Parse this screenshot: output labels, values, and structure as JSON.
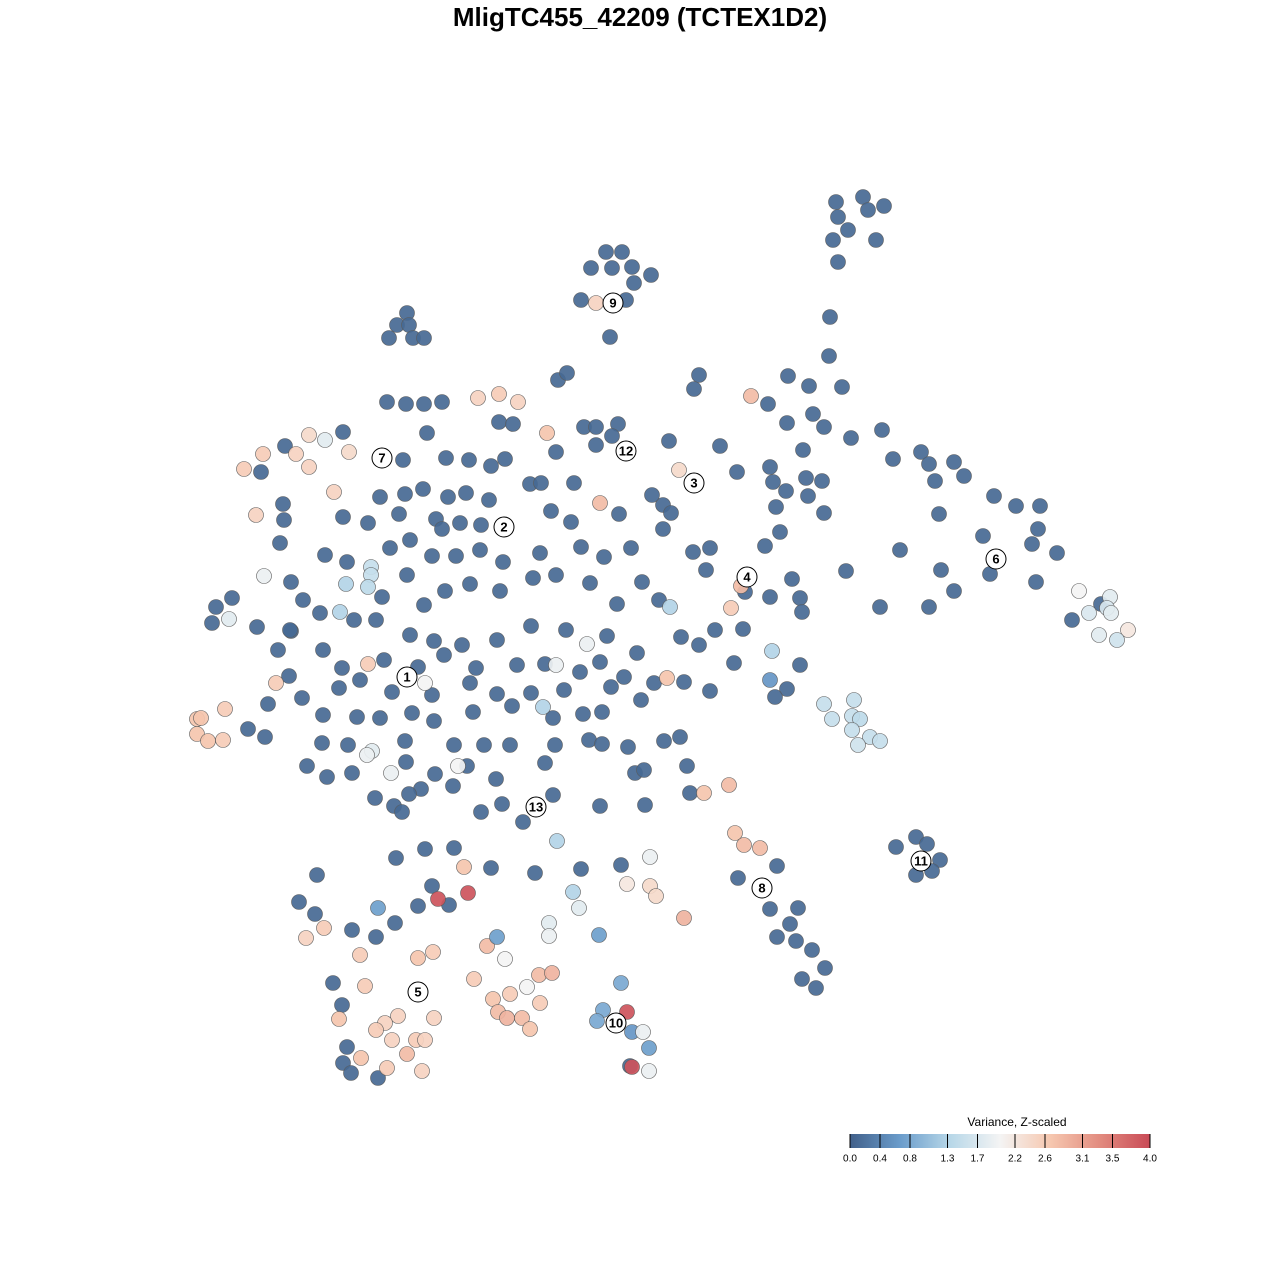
{
  "chart_data": {
    "type": "scatter",
    "title": "MligTC455_42209 (TCTEX1D2)",
    "xlim": [
      180,
      1140
    ],
    "ylim": [
      1090,
      180
    ],
    "colorbar_title": "Variance, Z-scaled",
    "zlim": [
      0,
      4
    ],
    "colors": [
      "#41608a",
      "#6a9ccb",
      "#b7d7e8",
      "#f4f4f4",
      "#f6c8b0",
      "#e28b7f",
      "#c94a56"
    ],
    "zticks": [
      {
        "value": 0,
        "label": "0.0"
      },
      {
        "value": 0.4,
        "label": "0.4"
      },
      {
        "value": 0.8,
        "label": "0.8"
      },
      {
        "value": 1.3,
        "label": "1.3"
      },
      {
        "value": 1.7,
        "label": "1.7"
      },
      {
        "value": 2.2,
        "label": "2.2"
      },
      {
        "value": 2.6,
        "label": "2.6"
      },
      {
        "value": 3.1,
        "label": "3.1"
      },
      {
        "value": 3.5,
        "label": "3.5"
      },
      {
        "value": 4,
        "label": "4.0"
      }
    ],
    "x": [
      836,
      863,
      884,
      868,
      838,
      848,
      833,
      876,
      838,
      830,
      829,
      842,
      606,
      622,
      591,
      612,
      632,
      651,
      634,
      581,
      626,
      610,
      407,
      397,
      409,
      389,
      413,
      424,
      387,
      406,
      424,
      442,
      558,
      567,
      499,
      513,
      584,
      596,
      618,
      612,
      596,
      556,
      669,
      699,
      694,
      768,
      788,
      809,
      787,
      813,
      824,
      851,
      803,
      882,
      921,
      893,
      929,
      954,
      935,
      964,
      994,
      1016,
      1040,
      939,
      983,
      1038,
      1057,
      990,
      1032,
      1036,
      900,
      941,
      954,
      929,
      880,
      846,
      1101,
      1072,
      720,
      737,
      770,
      773,
      806,
      822,
      786,
      808,
      776,
      824,
      765,
      780,
      710,
      693,
      706,
      745,
      770,
      792,
      800,
      802,
      715,
      743,
      681,
      699,
      800,
      734,
      787,
      775,
      710,
      684,
      916,
      927,
      896,
      940,
      916,
      932,
      777,
      738,
      770,
      798,
      790,
      777,
      796,
      812,
      825,
      802,
      816,
      690,
      663,
      621,
      581,
      535,
      491,
      454,
      425,
      396,
      432,
      418,
      449,
      317,
      299,
      315,
      352,
      376,
      395,
      333,
      342,
      347,
      343,
      351,
      378,
      630,
      285,
      261,
      343,
      283,
      284,
      280,
      291,
      232,
      216,
      212,
      257,
      278,
      291,
      268,
      265,
      248,
      289,
      302,
      403,
      427,
      446,
      469,
      491,
      505,
      380,
      405,
      423,
      448,
      466,
      489,
      530,
      541,
      574,
      343,
      368,
      399,
      436,
      460,
      481,
      551,
      571,
      619,
      652,
      671,
      325,
      347,
      390,
      410,
      432,
      456,
      480,
      503,
      540,
      581,
      604,
      631,
      663,
      303,
      320,
      382,
      407,
      424,
      445,
      470,
      500,
      533,
      556,
      590,
      617,
      642,
      659,
      290,
      354,
      376,
      410,
      434,
      462,
      497,
      531,
      566,
      607,
      637,
      323,
      342,
      384,
      418,
      444,
      476,
      517,
      545,
      580,
      600,
      624,
      654,
      339,
      360,
      392,
      432,
      470,
      497,
      531,
      564,
      611,
      641,
      323,
      357,
      380,
      412,
      434,
      473,
      512,
      553,
      583,
      602,
      322,
      348,
      405,
      454,
      484,
      510,
      555,
      589,
      628,
      664,
      307,
      327,
      352,
      406,
      435,
      467,
      496,
      545,
      602,
      635,
      644,
      375,
      394,
      421,
      453,
      481,
      502,
      523,
      553,
      600,
      645,
      409,
      402,
      687,
      680,
      442,
      596,
      478,
      499,
      518,
      547,
      751,
      1079,
      1110,
      1107,
      1089,
      1111,
      1128,
      1099,
      1117,
      741,
      731,
      772,
      770,
      667,
      824,
      854,
      832,
      852,
      860,
      852,
      870,
      880,
      858,
      735,
      744,
      760,
      729,
      704,
      679,
      600,
      684,
      650,
      627,
      650,
      656,
      557,
      573,
      579,
      549,
      549,
      599,
      464,
      468,
      438,
      378,
      324,
      306,
      360,
      433,
      418,
      487,
      497,
      505,
      539,
      552,
      527,
      510,
      493,
      474,
      498,
      507,
      522,
      530,
      540,
      434,
      365,
      339,
      398,
      385,
      376,
      392,
      416,
      425,
      407,
      361,
      387,
      422,
      621,
      603,
      597,
      627,
      632,
      643,
      649,
      632,
      649,
      244,
      263,
      296,
      309,
      325,
      309,
      334,
      349,
      256,
      264,
      229,
      276,
      197,
      201,
      225,
      197,
      208,
      223,
      371,
      371,
      368,
      346,
      340,
      368,
      372,
      367,
      391,
      425,
      458,
      556,
      587,
      543,
      670
    ],
    "y": [
      202,
      197,
      206,
      210,
      217,
      230,
      240,
      240,
      262,
      317,
      356,
      387,
      252,
      252,
      268,
      268,
      267,
      275,
      283,
      300,
      300,
      337,
      313,
      325,
      325,
      338,
      338,
      338,
      402,
      404,
      404,
      402,
      380,
      373,
      422,
      424,
      427,
      427,
      424,
      436,
      445,
      452,
      441,
      375,
      389,
      404,
      376,
      386,
      423,
      414,
      427,
      438,
      450,
      430,
      452,
      459,
      464,
      462,
      481,
      476,
      496,
      506,
      506,
      514,
      536,
      529,
      553,
      574,
      544,
      582,
      550,
      570,
      591,
      607,
      607,
      571,
      604,
      620,
      446,
      472,
      467,
      482,
      478,
      481,
      491,
      496,
      507,
      513,
      546,
      532,
      548,
      552,
      570,
      592,
      597,
      579,
      598,
      612,
      630,
      629,
      637,
      645,
      665,
      663,
      689,
      697,
      691,
      682,
      837,
      844,
      847,
      860,
      875,
      871,
      866,
      878,
      909,
      908,
      924,
      937,
      941,
      950,
      968,
      979,
      988,
      793,
      505,
      865,
      869,
      873,
      868,
      848,
      849,
      858,
      886,
      906,
      905,
      875,
      902,
      914,
      930,
      937,
      923,
      983,
      1005,
      1047,
      1063,
      1073,
      1078,
      1066,
      446,
      472,
      432,
      504,
      520,
      543,
      582,
      598,
      607,
      623,
      627,
      650,
      631,
      704,
      737,
      729,
      676,
      698,
      460,
      433,
      458,
      460,
      466,
      459,
      497,
      494,
      489,
      497,
      493,
      500,
      484,
      483,
      483,
      517,
      523,
      514,
      519,
      523,
      525,
      511,
      522,
      514,
      495,
      513,
      555,
      562,
      548,
      540,
      556,
      556,
      550,
      562,
      553,
      547,
      557,
      548,
      529,
      600,
      613,
      597,
      575,
      605,
      591,
      584,
      591,
      578,
      575,
      583,
      604,
      582,
      600,
      630,
      620,
      620,
      635,
      641,
      645,
      640,
      626,
      630,
      636,
      653,
      650,
      668,
      660,
      667,
      655,
      668,
      665,
      664,
      672,
      662,
      677,
      683,
      688,
      680,
      692,
      695,
      683,
      694,
      693,
      690,
      687,
      700,
      715,
      717,
      718,
      713,
      721,
      712,
      706,
      718,
      714,
      712,
      743,
      745,
      741,
      745,
      745,
      745,
      745,
      740,
      747,
      741,
      766,
      777,
      773,
      762,
      774,
      766,
      779,
      763,
      744,
      773,
      770,
      798,
      806,
      789,
      786,
      812,
      804,
      822,
      795,
      806,
      805,
      794,
      812,
      766,
      737,
      529,
      303,
      398,
      394,
      402,
      433,
      396,
      591,
      597,
      608,
      613,
      613,
      630,
      635,
      640,
      586,
      608,
      651,
      680,
      678,
      704,
      700,
      719,
      716,
      719,
      730,
      737,
      741,
      745,
      833,
      845,
      848,
      785,
      793,
      470,
      503,
      918,
      857,
      884,
      886,
      896,
      841,
      892,
      908,
      923,
      936,
      935,
      867,
      893,
      899,
      908,
      928,
      938,
      955,
      952,
      958,
      946,
      937,
      959,
      975,
      973,
      987,
      994,
      999,
      979,
      1012,
      1018,
      1018,
      1029,
      1003,
      1018,
      986,
      1019,
      1016,
      1023,
      1030,
      1040,
      1040,
      1040,
      1054,
      1058,
      1068,
      1071,
      983,
      1010,
      1021,
      1012,
      1032,
      1032,
      1048,
      1067,
      1071,
      469,
      454,
      454,
      435,
      440,
      467,
      492,
      452,
      515,
      576,
      619,
      683,
      719,
      718,
      709,
      734,
      741,
      740,
      567,
      575,
      587,
      584,
      612,
      664,
      751,
      755,
      773,
      683,
      766,
      665,
      644,
      707,
      607
    ],
    "values": [
      0.1,
      0.1,
      0.1,
      0.1,
      0.1,
      0.1,
      0.1,
      0.1,
      0.1,
      0.1,
      0.1,
      0.1,
      0.1,
      0.1,
      0.1,
      0.1,
      0.1,
      0.1,
      0.1,
      0.1,
      0.1,
      0.1,
      0.1,
      0.1,
      0.1,
      0.1,
      0.1,
      0.1,
      0.1,
      0.1,
      0.1,
      0.1,
      0.1,
      0.1,
      0.1,
      0.1,
      0.1,
      0.1,
      0.1,
      0.1,
      0.1,
      0.1,
      0.1,
      0.1,
      0.1,
      0.1,
      0.1,
      0.1,
      0.1,
      0.1,
      0.1,
      0.1,
      0.1,
      0.1,
      0.1,
      0.1,
      0.1,
      0.1,
      0.1,
      0.1,
      0.1,
      0.1,
      0.1,
      0.1,
      0.1,
      0.1,
      0.1,
      0.1,
      0.1,
      0.1,
      0.1,
      0.1,
      0.1,
      0.1,
      0.1,
      0.1,
      0.1,
      0.1,
      0.1,
      0.1,
      0.1,
      0.1,
      0.1,
      0.1,
      0.1,
      0.1,
      0.1,
      0.1,
      0.1,
      0.1,
      0.1,
      0.1,
      0.1,
      0.1,
      0.1,
      0.1,
      0.1,
      0.1,
      0.1,
      0.1,
      0.1,
      0.1,
      0.1,
      0.1,
      0.1,
      0.1,
      0.1,
      0.1,
      0.1,
      0.1,
      0.1,
      0.1,
      0.1,
      0.1,
      0.1,
      0.1,
      0.1,
      0.1,
      0.1,
      0.1,
      0.1,
      0.1,
      0.1,
      0.1,
      0.1,
      0.1,
      0.1,
      0.1,
      0.1,
      0.1,
      0.1,
      0.1,
      0.1,
      0.1,
      0.1,
      0.1,
      0.1,
      0.1,
      0.1,
      0.1,
      0.1,
      0.1,
      0.1,
      0.1,
      0.1,
      0.1,
      0.1,
      0.1,
      0.1,
      0.1,
      0.1,
      0.1,
      0.1,
      0.1,
      0.1,
      0.1,
      0.1,
      0.1,
      0.1,
      0.1,
      0.1,
      0.1,
      0.1,
      0.1,
      0.1,
      0.1,
      0.1,
      0.1,
      0.1,
      0.1,
      0.1,
      0.1,
      0.1,
      0.1,
      0.1,
      0.1,
      0.1,
      0.1,
      0.1,
      0.1,
      0.1,
      0.1,
      0.1,
      0.1,
      0.1,
      0.1,
      0.1,
      0.1,
      0.1,
      0.1,
      0.1,
      0.1,
      0.1,
      0.1,
      0.1,
      0.1,
      0.1,
      0.1,
      0.1,
      0.1,
      0.1,
      0.1,
      0.1,
      0.1,
      0.1,
      0.1,
      0.1,
      0.1,
      0.1,
      0.1,
      0.1,
      0.1,
      0.1,
      0.1,
      0.1,
      0.1,
      0.1,
      0.1,
      0.1,
      0.1,
      0.1,
      0.1,
      0.1,
      0.1,
      0.1,
      0.1,
      0.1,
      0.1,
      0.1,
      0.1,
      0.1,
      0.1,
      0.1,
      0.1,
      0.1,
      0.1,
      0.1,
      0.1,
      0.1,
      0.1,
      0.1,
      0.1,
      0.1,
      0.1,
      0.1,
      0.1,
      0.1,
      0.1,
      0.1,
      0.1,
      0.1,
      0.1,
      0.1,
      0.1,
      0.1,
      0.1,
      0.1,
      0.1,
      0.1,
      0.1,
      0.1,
      0.1,
      0.1,
      0.1,
      0.1,
      0.1,
      0.1,
      0.1,
      0.1,
      0.1,
      0.1,
      0.1,
      0.1,
      0.1,
      0.1,
      0.1,
      0.1,
      0.1,
      0.1,
      0.1,
      0.1,
      0.1,
      0.1,
      0.1,
      0.1,
      0.1,
      0.1,
      0.1,
      0.1,
      0.1,
      0.1,
      0.1,
      0.1,
      0.1,
      0.1,
      0.1,
      0.1,
      0.1,
      0.1,
      0.1,
      2.5,
      2.5,
      2.6,
      2.5,
      2.7,
      2.8,
      2.0,
      1.8,
      1.7,
      1.7,
      1.8,
      2.2,
      1.8,
      1.6,
      2.8,
      2.6,
      1.3,
      0.6,
      2.7,
      1.5,
      1.5,
      1.5,
      1.5,
      1.4,
      1.5,
      1.5,
      1.5,
      1.6,
      2.7,
      2.8,
      2.8,
      2.8,
      2.7,
      2.4,
      2.8,
      2.9,
      1.9,
      2.2,
      2.4,
      2.4,
      1.3,
      1.3,
      1.8,
      1.8,
      1.9,
      0.7,
      2.7,
      3.9,
      3.9,
      0.7,
      2.6,
      2.5,
      2.6,
      2.6,
      2.7,
      2.8,
      0.7,
      2.0,
      2.8,
      2.9,
      2.0,
      2.6,
      2.7,
      2.6,
      2.8,
      2.9,
      2.8,
      2.7,
      2.6,
      2.5,
      2.6,
      2.7,
      2.5,
      2.5,
      2.6,
      2.5,
      2.6,
      2.5,
      2.8,
      2.7,
      2.6,
      2.5,
      0.8,
      0.8,
      0.8,
      3.9,
      0.6,
      1.9,
      0.7,
      3.9,
      1.9,
      2.6,
      2.6,
      2.5,
      2.4,
      1.8,
      2.5,
      2.5,
      2.4,
      2.5,
      1.9,
      1.8,
      2.6,
      2.7,
      2.7,
      2.6,
      2.7,
      2.7,
      2.6,
      1.5,
      1.5,
      1.4,
      1.3,
      1.3,
      2.6,
      1.8,
      1.9,
      1.9,
      2.0,
      2.0,
      1.9,
      1.9,
      1.3,
      1.3
    ],
    "clusters": {
      "labels": [
        "1",
        "2",
        "3",
        "4",
        "5",
        "6",
        "7",
        "8",
        "9",
        "10",
        "11",
        "12",
        "13"
      ],
      "x": [
        407,
        504,
        694,
        747,
        418,
        996,
        382,
        762,
        613,
        616,
        921,
        626,
        536
      ],
      "y": [
        677,
        527,
        483,
        577,
        992,
        559,
        458,
        888,
        303,
        1023,
        861,
        451,
        807
      ]
    }
  }
}
